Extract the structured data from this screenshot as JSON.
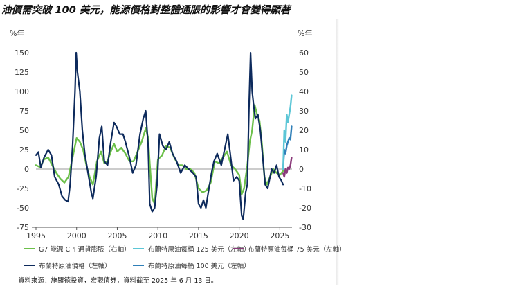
{
  "title": "油價需突破 100 美元，能源價格對整體通脹的影響才會變得顯著",
  "source": "資料來源：施羅德投資，宏觀債券，資料截至 2025 年 6 月 13 日。",
  "colors": {
    "oil_price": "#0d2a5c",
    "g7_cpi": "#6cc04a",
    "oil_125": "#5cc6d6",
    "oil_100": "#2f7fb8",
    "oil_75": "#8a3a7a",
    "axis": "#555555",
    "zero_line": "#999999"
  },
  "chart_data": {
    "type": "line",
    "title": "",
    "x_ticks": [
      "1995",
      "2000",
      "2005",
      "2010",
      "2015",
      "2020",
      "2025"
    ],
    "xlim": [
      1995,
      2026.5
    ],
    "left_axis": {
      "label": "%年",
      "ticks": [
        "150",
        "125",
        "100",
        "75",
        "50",
        "25",
        "0",
        "-25",
        "-50",
        "-75"
      ],
      "ylim": [
        -75,
        150
      ]
    },
    "right_axis": {
      "label": "%年",
      "ticks": [
        "60",
        "50",
        "40",
        "30",
        "20",
        "10",
        "0",
        "-10",
        "-20",
        "-30"
      ],
      "ylim": [
        -30,
        60
      ]
    },
    "legend": [
      {
        "name": "G7 能源 CPI 通貨膨脹（右軸）",
        "color": "#6cc04a"
      },
      {
        "name": "布蘭特原油每桶 125 美元（左軸）",
        "color": "#5cc6d6"
      },
      {
        "name": "布蘭特原油每桶 75 美元（左軸）",
        "color": "#8a3a7a"
      },
      {
        "name": "布蘭特原油價格（左軸）",
        "color": "#0d2a5c"
      },
      {
        "name": "布蘭特原油每桶 100 美元（左軸）",
        "color": "#2f7fb8"
      }
    ],
    "series": [
      {
        "name": "布蘭特原油價格（左軸）",
        "axis": "left",
        "color": "#0d2a5c",
        "x": [
          1995.0,
          1995.3,
          1995.6,
          1996.0,
          1996.5,
          1996.9,
          1997.3,
          1997.8,
          1998.2,
          1998.6,
          1998.95,
          1999.2,
          1999.5,
          1999.8,
          1999.95,
          2000.1,
          2000.4,
          2000.7,
          2001.0,
          2001.4,
          2001.8,
          2002.0,
          2002.4,
          2002.8,
          2003.1,
          2003.4,
          2003.8,
          2004.2,
          2004.6,
          2004.9,
          2005.3,
          2005.7,
          2006.0,
          2006.5,
          2006.9,
          2007.3,
          2007.8,
          2008.2,
          2008.5,
          2008.8,
          2009.0,
          2009.3,
          2009.6,
          2009.9,
          2010.2,
          2010.6,
          2011.0,
          2011.4,
          2011.8,
          2012.3,
          2012.8,
          2013.3,
          2013.8,
          2014.3,
          2014.7,
          2015.0,
          2015.3,
          2015.6,
          2015.9,
          2016.2,
          2016.6,
          2016.9,
          2017.3,
          2017.8,
          2018.2,
          2018.6,
          2018.9,
          2019.3,
          2019.7,
          2020.0,
          2020.3,
          2020.5,
          2020.8,
          2021.0,
          2021.2,
          2021.4,
          2021.6,
          2021.8,
          2022.0,
          2022.3,
          2022.6,
          2022.9,
          2023.2,
          2023.5,
          2023.8,
          2024.0,
          2024.3,
          2024.6,
          2024.9,
          2025.2,
          2025.4
        ],
        "y": [
          18,
          22,
          2,
          15,
          25,
          18,
          -10,
          -20,
          -35,
          -40,
          -42,
          -20,
          30,
          100,
          150,
          125,
          100,
          50,
          20,
          -5,
          -30,
          -38,
          -10,
          40,
          55,
          10,
          5,
          35,
          60,
          55,
          45,
          45,
          35,
          15,
          -5,
          5,
          45,
          65,
          75,
          30,
          -45,
          -55,
          -50,
          -20,
          45,
          30,
          25,
          35,
          20,
          10,
          -5,
          5,
          0,
          -5,
          -10,
          -45,
          -50,
          -40,
          -50,
          -30,
          -5,
          10,
          20,
          5,
          25,
          45,
          20,
          -15,
          -10,
          -15,
          -60,
          -65,
          -30,
          -20,
          75,
          150,
          100,
          80,
          65,
          70,
          50,
          15,
          -20,
          -25,
          -10,
          0,
          -5,
          5,
          -10,
          -15,
          -20
        ]
      },
      {
        "name": "G7 能源 CPI 通貨膨脹（右軸）",
        "axis": "right",
        "color": "#6cc04a",
        "x": [
          1995.0,
          1995.5,
          1996.0,
          1996.5,
          1997.0,
          1997.5,
          1998.0,
          1998.5,
          1999.0,
          1999.5,
          2000.0,
          2000.4,
          2000.8,
          2001.2,
          2001.6,
          2002.0,
          2002.5,
          2003.0,
          2003.4,
          2003.8,
          2004.2,
          2004.6,
          2005.0,
          2005.5,
          2006.0,
          2006.5,
          2007.0,
          2007.5,
          2008.0,
          2008.5,
          2008.8,
          2009.0,
          2009.3,
          2009.6,
          2010.0,
          2010.5,
          2011.0,
          2011.5,
          2012.0,
          2012.5,
          2013.0,
          2013.5,
          2014.0,
          2014.5,
          2015.0,
          2015.5,
          2016.0,
          2016.5,
          2017.0,
          2017.5,
          2018.0,
          2018.5,
          2019.0,
          2019.5,
          2020.0,
          2020.3,
          2020.6,
          2021.0,
          2021.3,
          2021.6,
          2021.9,
          2022.2,
          2022.5,
          2022.8,
          2023.1,
          2023.4,
          2023.8,
          2024.2,
          2024.6,
          2025.0,
          2025.4
        ],
        "y": [
          2,
          1,
          5,
          6,
          2,
          -2,
          -5,
          -7,
          -4,
          6,
          16,
          14,
          10,
          2,
          -4,
          -8,
          4,
          9,
          3,
          4,
          9,
          13,
          9,
          11,
          8,
          4,
          4,
          9,
          14,
          21,
          16,
          3,
          -15,
          -18,
          5,
          7,
          12,
          11,
          6,
          2,
          2,
          0,
          0,
          -2,
          -10,
          -12,
          -11,
          -7,
          4,
          3,
          6,
          9,
          2,
          0,
          -3,
          -13,
          -10,
          2,
          14,
          20,
          33,
          28,
          25,
          13,
          -4,
          -8,
          -4,
          0,
          -2,
          -3,
          -1
        ]
      },
      {
        "name": "布蘭特原油每桶 125 美元（左軸）",
        "axis": "left",
        "color": "#5cc6d6",
        "x": [
          2025.4,
          2025.55,
          2025.7,
          2025.85,
          2026.0,
          2026.15,
          2026.3,
          2026.45
        ],
        "y": [
          0,
          50,
          35,
          70,
          60,
          70,
          80,
          95
        ]
      },
      {
        "name": "布蘭特原油每桶 100 美元（左軸）",
        "axis": "left",
        "color": "#2f7fb8",
        "x": [
          2025.4,
          2025.55,
          2025.7,
          2025.85,
          2026.0,
          2026.15,
          2026.3,
          2026.45
        ],
        "y": [
          0,
          25,
          20,
          30,
          35,
          40,
          38,
          55
        ]
      },
      {
        "name": "布蘭特原油每桶 75 美元（左軸）",
        "axis": "left",
        "color": "#8a3a7a",
        "x": [
          2025.4,
          2025.55,
          2025.7,
          2025.85,
          2026.0,
          2026.15,
          2026.3,
          2026.45
        ],
        "y": [
          -5,
          -10,
          0,
          -5,
          2,
          0,
          5,
          15
        ]
      }
    ]
  }
}
